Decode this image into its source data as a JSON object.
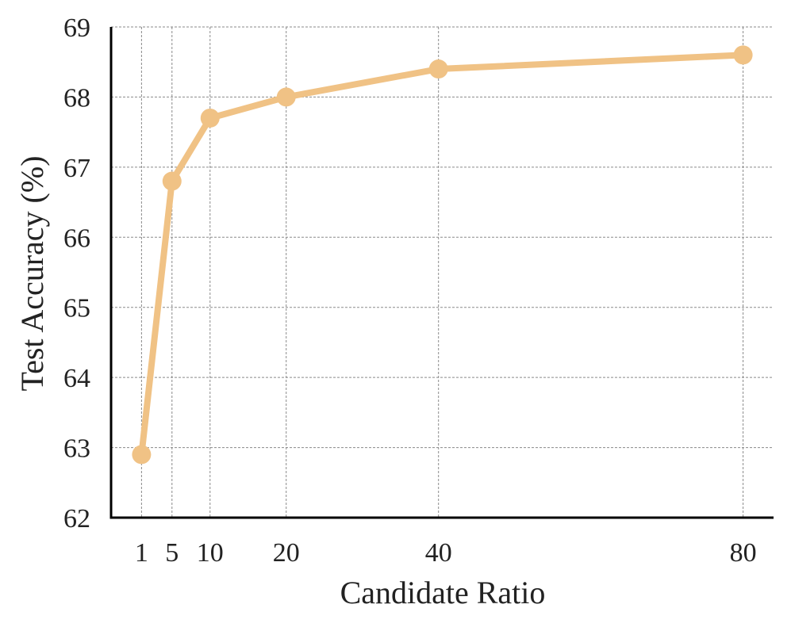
{
  "chart_data": {
    "type": "line",
    "xlabel": "Candidate Ratio",
    "ylabel": "Test Accuracy (%)",
    "x_ticks": [
      1,
      5,
      10,
      20,
      40,
      80
    ],
    "y_ticks": [
      62,
      63,
      64,
      65,
      66,
      67,
      68,
      69
    ],
    "xlim": [
      -3,
      84
    ],
    "ylim": [
      62,
      69
    ],
    "grid": true,
    "series": [
      {
        "x": [
          1,
          5,
          10,
          20,
          40,
          80
        ],
        "y": [
          62.9,
          66.8,
          67.7,
          68.0,
          68.4,
          68.6
        ],
        "color": "#F0C285",
        "marker": "circle"
      }
    ]
  }
}
